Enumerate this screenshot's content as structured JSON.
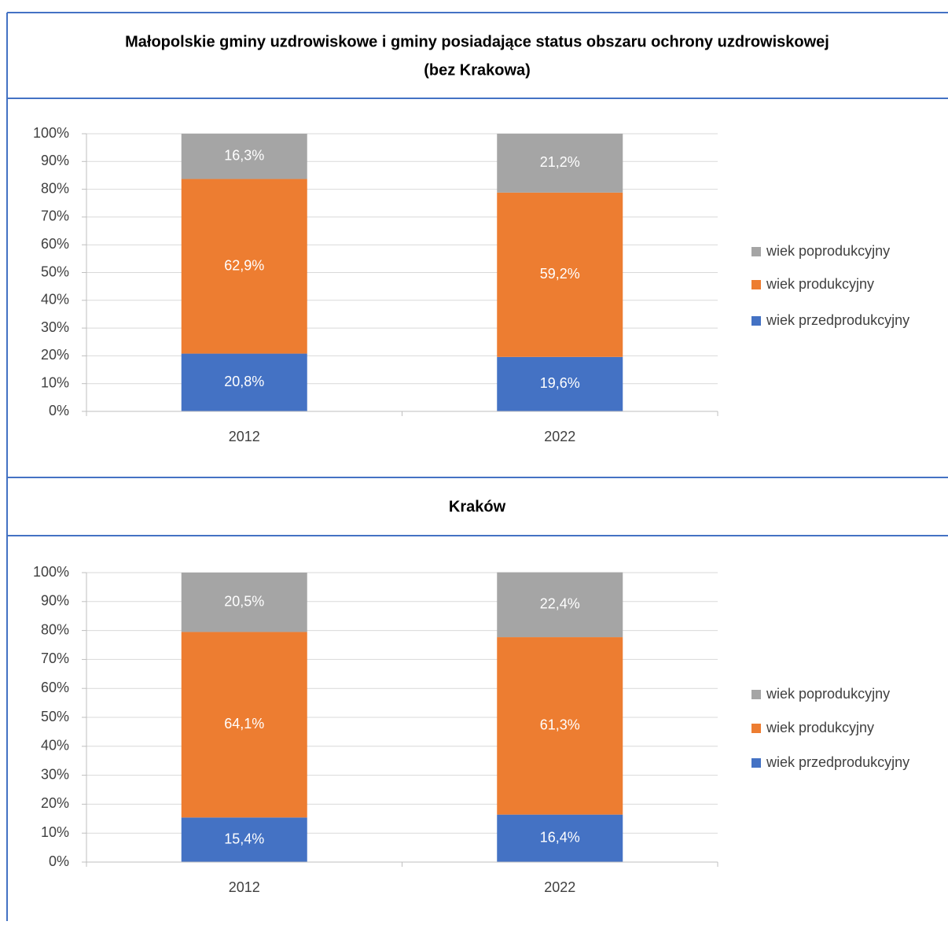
{
  "chart_data": [
    {
      "type": "stacked_bar",
      "title": [
        "Małopolskie gminy uzdrowiskowe i gminy posiadające status obszaru ochrony uzdrowiskowej",
        "(bez Krakowa)"
      ],
      "categories": [
        "2012",
        "2022"
      ],
      "series": [
        {
          "name": "wiek przedprodukcyjny",
          "color": "#4472c4",
          "values": [
            20.8,
            19.6
          ],
          "value_labels": [
            "20,8%",
            "19,6%"
          ]
        },
        {
          "name": "wiek produkcyjny",
          "color": "#ed7d31",
          "values": [
            62.9,
            59.2
          ],
          "value_labels": [
            "62,9%",
            "59,2%"
          ]
        },
        {
          "name": "wiek poprodukcyjny",
          "color": "#a5a5a5",
          "values": [
            16.3,
            21.2
          ],
          "value_labels": [
            "16,3%",
            "21,2%"
          ]
        }
      ],
      "ylim": [
        0,
        100
      ],
      "yticks": [
        {
          "value": 0,
          "label": "0%"
        },
        {
          "value": 10,
          "label": "10%"
        },
        {
          "value": 20,
          "label": "20%"
        },
        {
          "value": 30,
          "label": "30%"
        },
        {
          "value": 40,
          "label": "40%"
        },
        {
          "value": 50,
          "label": "50%"
        },
        {
          "value": 60,
          "label": "60%"
        },
        {
          "value": 70,
          "label": "70%"
        },
        {
          "value": 80,
          "label": "80%"
        },
        {
          "value": 90,
          "label": "90%"
        },
        {
          "value": 100,
          "label": "100%"
        }
      ],
      "grid": true,
      "legend": "right"
    },
    {
      "type": "stacked_bar",
      "title": [
        "Kraków"
      ],
      "categories": [
        "2012",
        "2022"
      ],
      "series": [
        {
          "name": "wiek przedprodukcyjny",
          "color": "#4472c4",
          "values": [
            15.4,
            16.4
          ],
          "value_labels": [
            "15,4%",
            "16,4%"
          ]
        },
        {
          "name": "wiek produkcyjny",
          "color": "#ed7d31",
          "values": [
            64.1,
            61.3
          ],
          "value_labels": [
            "64,1%",
            "61,3%"
          ]
        },
        {
          "name": "wiek poprodukcyjny",
          "color": "#a5a5a5",
          "values": [
            20.5,
            22.4
          ],
          "value_labels": [
            "20,5%",
            "22,4%"
          ]
        }
      ],
      "ylim": [
        0,
        100
      ],
      "yticks": [
        {
          "value": 0,
          "label": "0%"
        },
        {
          "value": 10,
          "label": "10%"
        },
        {
          "value": 20,
          "label": "20%"
        },
        {
          "value": 30,
          "label": "30%"
        },
        {
          "value": 40,
          "label": "40%"
        },
        {
          "value": 50,
          "label": "50%"
        },
        {
          "value": 60,
          "label": "60%"
        },
        {
          "value": 70,
          "label": "70%"
        },
        {
          "value": 80,
          "label": "80%"
        },
        {
          "value": 90,
          "label": "90%"
        },
        {
          "value": 100,
          "label": "100%"
        }
      ],
      "grid": true,
      "legend": "right"
    }
  ]
}
